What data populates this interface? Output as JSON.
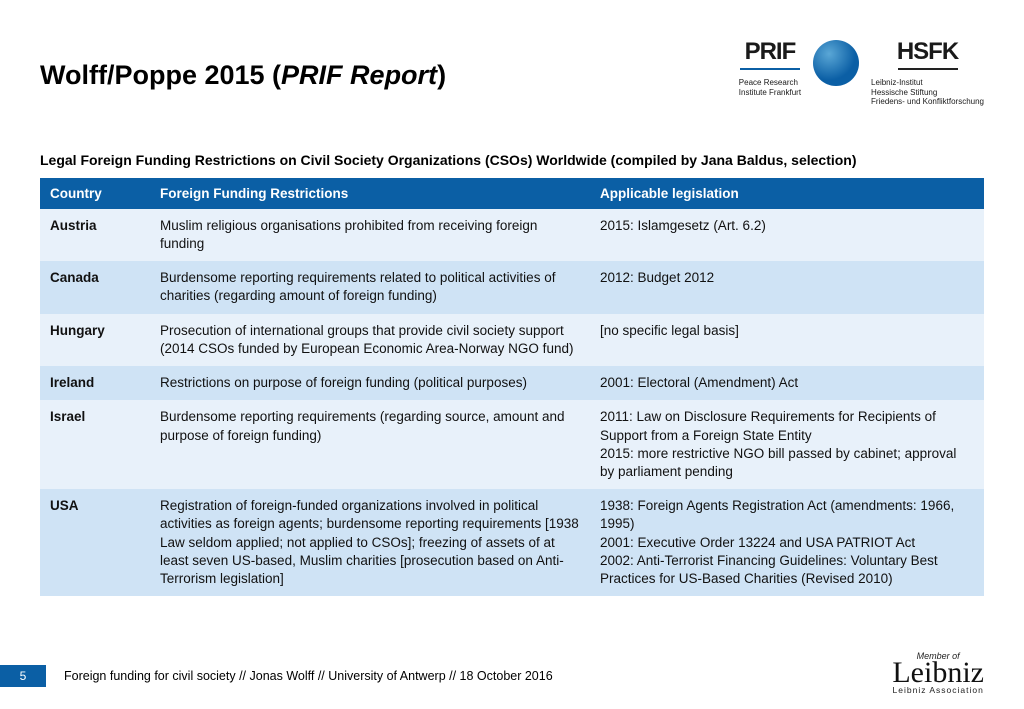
{
  "title_prefix": "Wolff/Poppe 2015 (",
  "title_italic": "PRIF Report",
  "title_suffix": ")",
  "logo": {
    "left_big": "PRIF",
    "left_sub": "Peace Research\nInstitute Frankfurt",
    "right_big": "HSFK",
    "right_sub": "Leibniz-Institut\nHessische Stiftung\nFriedens- und Konfliktforschung"
  },
  "subtitle": "Legal Foreign Funding Restrictions on Civil Society Organizations (CSOs) Worldwide (compiled by Jana Baldus, selection)",
  "table": {
    "header_bg": "#0b5fa5",
    "row_light_bg": "#e8f1fa",
    "row_lighter_bg": "#cfe3f5",
    "columns": [
      "Country",
      "Foreign Funding Restrictions",
      "Applicable legislation"
    ],
    "rows": [
      {
        "country": "Austria",
        "restrictions": "Muslim religious organisations prohibited from receiving foreign funding",
        "legislation": "2015: Islamgesetz (Art. 6.2)",
        "shade": "light"
      },
      {
        "country": "Canada",
        "restrictions": "Burdensome reporting requirements related to political activities of charities (regarding amount of foreign funding)",
        "legislation": "2012: Budget 2012",
        "shade": "lighter"
      },
      {
        "country": "Hungary",
        "restrictions": "Prosecution of international groups that provide civil society support (2014 CSOs funded by European Economic Area-Norway NGO fund)",
        "legislation": "[no specific legal basis]",
        "shade": "light"
      },
      {
        "country": "Ireland",
        "restrictions": "Restrictions on purpose of foreign funding (political purposes)",
        "legislation": "2001: Electoral (Amendment) Act",
        "shade": "lighter"
      },
      {
        "country": "Israel",
        "restrictions": "Burdensome reporting requirements (regarding source, amount and purpose of foreign funding)",
        "legislation": "2011: Law on Disclosure Requirements for Recipients of Support from a Foreign State Entity\n2015: more restrictive NGO bill passed by cabinet; approval by parliament pending",
        "shade": "light"
      },
      {
        "country": "USA",
        "restrictions": "Registration of foreign-funded organizations involved in political activities as foreign agents; burdensome reporting requirements [1938 Law seldom applied; not applied to CSOs]; freezing of assets of at least seven US-based, Muslim charities [prosecution based on Anti-Terrorism legislation]",
        "legislation": "1938: Foreign Agents Registration Act (amendments: 1966, 1995)\n2001: Executive Order 13224 and USA PATRIOT Act\n2002: Anti-Terrorist Financing Guidelines: Voluntary Best Practices for US-Based Charities (Revised 2010)",
        "shade": "lighter"
      }
    ]
  },
  "footer": {
    "page": "5",
    "text": "Foreign funding for civil society // Jonas Wolff // University of Antwerp // 18 October 2016"
  },
  "member": {
    "label": "Member of",
    "script": "Leibniz",
    "assoc": "Leibniz Association"
  }
}
